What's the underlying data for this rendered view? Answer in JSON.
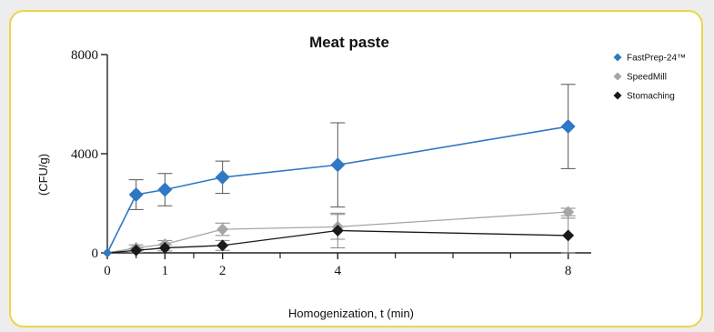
{
  "chart_data": {
    "type": "line",
    "title": "Meat paste",
    "xlabel": "Homogenization, t (min)",
    "ylabel": "(CFU/g)",
    "xlim": [
      0,
      8.4
    ],
    "ylim": [
      0,
      8000
    ],
    "x_tick_values": [
      0,
      1,
      2,
      4,
      8
    ],
    "x_tick_labels": [
      "0",
      "1",
      "2",
      "4",
      "8"
    ],
    "x_minor_ticks": [
      0.5,
      1.5,
      3,
      5,
      6,
      7
    ],
    "y_tick_values": [
      0,
      4000,
      8000
    ],
    "y_tick_labels": [
      "0",
      "4000",
      "8000"
    ],
    "grid": false,
    "legend_position": "right",
    "series": [
      {
        "name": "FastPrep-24™",
        "color": "#2f78c4",
        "x": [
          0,
          0.5,
          1,
          2,
          4,
          8
        ],
        "y": [
          0,
          2350,
          2550,
          3050,
          3550,
          5100
        ],
        "err": [
          0,
          600,
          650,
          650,
          1700,
          1700
        ]
      },
      {
        "name": "SpeedMill",
        "color": "#a6a6a6",
        "x": [
          0,
          0.5,
          1,
          2,
          4,
          8
        ],
        "y": [
          0,
          200,
          350,
          950,
          1050,
          1650
        ],
        "err": [
          0,
          120,
          150,
          250,
          500,
          150
        ]
      },
      {
        "name": "Stomaching",
        "color": "#1a1a1a",
        "x": [
          0,
          0.5,
          1,
          2,
          4,
          8
        ],
        "y": [
          0,
          100,
          200,
          300,
          900,
          700
        ],
        "err": [
          0,
          80,
          120,
          200,
          700,
          700
        ]
      }
    ]
  }
}
